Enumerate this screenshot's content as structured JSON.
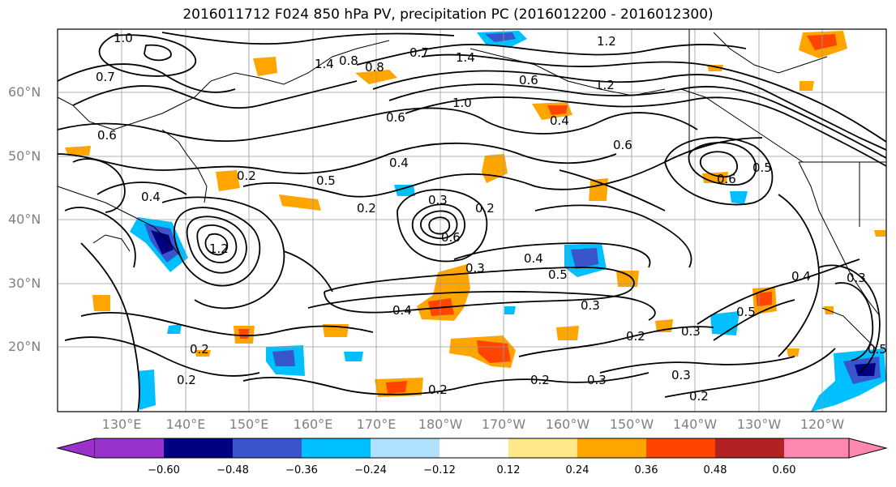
{
  "title": "2016011712 F024 850 hPa PV, precipitation PC (2016012200 - 2016012300)",
  "map": {
    "lat_labels": [
      "60°N",
      "50°N",
      "40°N",
      "30°N",
      "20°N"
    ],
    "lon_labels": [
      "130°E",
      "140°E",
      "150°E",
      "160°E",
      "170°E",
      "180°W",
      "170°W",
      "160°W",
      "150°W",
      "140°W",
      "130°W",
      "120°W"
    ],
    "grid": true,
    "contour_color": "#000000",
    "contour_labels": [
      "1.0",
      "0.7",
      "0.6",
      "0.8",
      "1.4",
      "0.8",
      "0.7",
      "1.4",
      "1.2",
      "1.0",
      "0.6",
      "0.4",
      "1.2",
      "0.6",
      "0.6",
      "0.5",
      "0.6",
      "0.4",
      "0.2",
      "0.5",
      "0.4",
      "0.2",
      "0.3",
      "0.6",
      "0.2",
      "1.2",
      "0.3",
      "0.4",
      "0.5",
      "0.4",
      "0.3",
      "0.2",
      "0.3",
      "0.2",
      "0.2",
      "0.2",
      "0.3",
      "0.3",
      "0.2",
      "0.2",
      "0.4",
      "0.5",
      "0.5",
      "0.3"
    ]
  },
  "colorbar": {
    "ticks": [
      "−0.60",
      "−0.48",
      "−0.36",
      "−0.24",
      "−0.12",
      "0.12",
      "0.24",
      "0.36",
      "0.48",
      "0.60"
    ],
    "colors": [
      "#9932cc",
      "#000080",
      "#3955cc",
      "#00bfff",
      "#b0e2ff",
      "#ffffff",
      "#ffe78a",
      "#ffa500",
      "#ff4500",
      "#b22222",
      "#ff88b0"
    ]
  }
}
